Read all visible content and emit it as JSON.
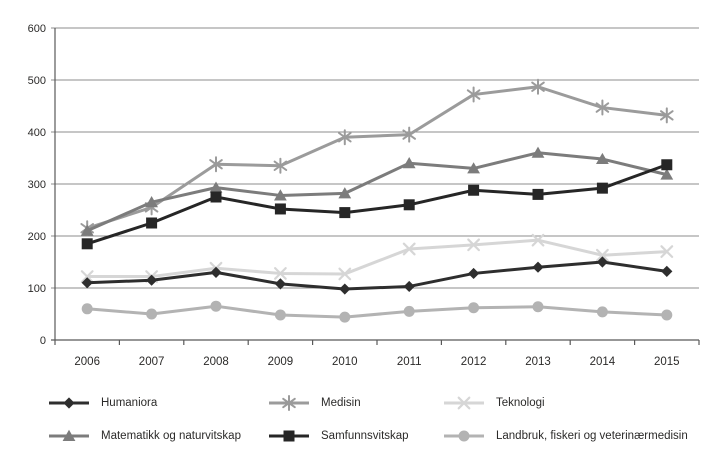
{
  "figure": {
    "background": "#ffffff",
    "text_color": "#2b2a29",
    "gridline_color": "#8c8c8c",
    "axis_color": "#595959"
  },
  "chart_data": {
    "type": "line",
    "title": "",
    "xlabel": "",
    "ylabel": "",
    "x": [
      "2006",
      "2007",
      "2008",
      "2009",
      "2010",
      "2011",
      "2012",
      "2013",
      "2014",
      "2015"
    ],
    "ylim": [
      0,
      600
    ],
    "ytick_step": 100,
    "ytick_labels": [
      "0",
      "100",
      "200",
      "300",
      "400",
      "500",
      "600"
    ],
    "grid": true,
    "legend_position": "bottom",
    "series": [
      {
        "name": "Humaniora",
        "marker": "diamond",
        "color": "#2e2e2e",
        "values": [
          110,
          115,
          130,
          108,
          98,
          103,
          128,
          140,
          150,
          132
        ]
      },
      {
        "name": "Medisin",
        "marker": "asterisk",
        "color": "#9b9b9b",
        "values": [
          215,
          255,
          338,
          335,
          390,
          395,
          472,
          487,
          447,
          432
        ]
      },
      {
        "name": "Teknologi",
        "marker": "x",
        "color": "#d6d6d6",
        "values": [
          122,
          122,
          138,
          128,
          127,
          175,
          183,
          192,
          163,
          170
        ]
      },
      {
        "name": "Matematikk og naturvitskap",
        "marker": "triangle",
        "color": "#7c7c7c",
        "values": [
          210,
          265,
          293,
          278,
          282,
          340,
          330,
          360,
          348,
          318
        ]
      },
      {
        "name": "Samfunnsvitskap",
        "marker": "square",
        "color": "#262626",
        "values": [
          185,
          225,
          275,
          252,
          245,
          260,
          288,
          280,
          292,
          337
        ]
      },
      {
        "name": "Landbruk, fiskeri og veterinærmedisin",
        "marker": "circle",
        "color": "#b3b3b3",
        "values": [
          60,
          50,
          65,
          48,
          44,
          55,
          62,
          64,
          54,
          48
        ]
      }
    ],
    "draw_order": [
      2,
      5,
      1,
      3,
      0,
      4
    ]
  }
}
